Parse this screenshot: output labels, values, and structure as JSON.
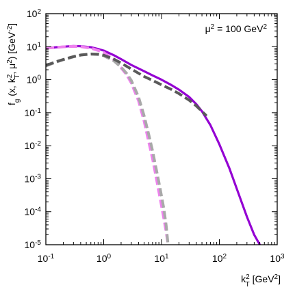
{
  "chart_data": {
    "type": "line",
    "annotation": {
      "label": "μ² = 100 GeV²",
      "base": "μ",
      "sup1": "2",
      "mid": " = 100 GeV",
      "sup2": "2"
    },
    "xlabel": {
      "base": "k",
      "sub": "T",
      "sup": "2",
      "tail": " [GeV",
      "tail_sup": "2",
      "end": "]"
    },
    "ylabel": {
      "p1": "f",
      "p1_sub": "g",
      "p2": " (x, k",
      "p2_sub": "T",
      "p2_sup": "2",
      "p3": ", μ",
      "p3_sup": "2",
      "p4": ") [GeV",
      "p4_sup": "-2",
      "p5": "]"
    },
    "x_scale": "log",
    "y_scale": "log",
    "xlim": [
      0.1,
      1000
    ],
    "ylim": [
      1e-05,
      100
    ],
    "x_ticks": [
      {
        "value": 0.1,
        "base": "10",
        "exp": "-1"
      },
      {
        "value": 1,
        "base": "10",
        "exp": "0"
      },
      {
        "value": 10,
        "base": "10",
        "exp": "1"
      },
      {
        "value": 100,
        "base": "10",
        "exp": "2"
      },
      {
        "value": 1000,
        "base": "10",
        "exp": "3"
      }
    ],
    "y_ticks": [
      {
        "value": 1e-05,
        "base": "10",
        "exp": "-5"
      },
      {
        "value": 0.0001,
        "base": "10",
        "exp": "-4"
      },
      {
        "value": 0.001,
        "base": "10",
        "exp": "-3"
      },
      {
        "value": 0.01,
        "base": "10",
        "exp": "-2"
      },
      {
        "value": 0.1,
        "base": "10",
        "exp": "-1"
      },
      {
        "value": 1,
        "base": "10",
        "exp": "0"
      },
      {
        "value": 10,
        "base": "10",
        "exp": "1"
      },
      {
        "value": 100,
        "base": "10",
        "exp": "2"
      }
    ],
    "grid": false,
    "series": [
      {
        "color": "#9400d3",
        "style": "solid",
        "x": [
          0.1,
          0.15,
          0.2,
          0.3,
          0.4,
          0.6,
          0.8,
          1,
          1.5,
          2,
          3,
          5,
          7,
          10,
          15,
          20,
          30,
          40,
          50,
          70,
          100,
          150,
          200,
          300,
          400,
          500
        ],
        "y": [
          9.0,
          9.6,
          10.0,
          10.5,
          10.3,
          9.6,
          8.5,
          7.6,
          5.5,
          4.2,
          2.8,
          1.8,
          1.35,
          1.0,
          0.68,
          0.5,
          0.3,
          0.18,
          0.11,
          0.042,
          0.011,
          0.002,
          0.0005,
          7e-05,
          2e-05,
          1e-05
        ]
      },
      {
        "color": "#ee82ee",
        "style": "dashed",
        "x": [
          0.1,
          0.15,
          0.2,
          0.3,
          0.4,
          0.6,
          0.8,
          1,
          1.5,
          2,
          2.5,
          3,
          4,
          5,
          6,
          7,
          8,
          9,
          10,
          11,
          12,
          13
        ],
        "y": [
          9.0,
          9.5,
          9.9,
          10.2,
          10.0,
          9.0,
          7.7,
          6.7,
          4.0,
          2.3,
          1.4,
          0.8,
          0.23,
          0.055,
          0.013,
          0.004,
          0.0012,
          0.0004,
          0.00015,
          6e-05,
          2.5e-05,
          1e-05
        ]
      },
      {
        "color": "#a9a9a9",
        "style": "dashed",
        "x": [
          0.1,
          0.15,
          0.2,
          0.3,
          0.4,
          0.5,
          0.6,
          0.8,
          1,
          1.5,
          2,
          2.5,
          3,
          4,
          5,
          6,
          7,
          8,
          9,
          10,
          11,
          12,
          13
        ],
        "y": [
          2.6,
          3.4,
          4.0,
          4.9,
          5.5,
          5.8,
          5.9,
          5.8,
          5.3,
          3.7,
          2.4,
          1.55,
          0.95,
          0.3,
          0.08,
          0.022,
          0.007,
          0.0022,
          0.0008,
          0.0003,
          0.00012,
          4e-05,
          1e-05
        ]
      },
      {
        "color": "#5a5a5a",
        "style": "dashed",
        "x": [
          0.1,
          0.15,
          0.2,
          0.3,
          0.4,
          0.6,
          0.8,
          1,
          1.5,
          2,
          3,
          5,
          7,
          10,
          15,
          20,
          30,
          40,
          50,
          60
        ],
        "y": [
          2.7,
          3.5,
          4.1,
          5.0,
          5.6,
          6.0,
          5.9,
          5.5,
          4.2,
          3.2,
          2.1,
          1.25,
          0.95,
          0.7,
          0.5,
          0.38,
          0.24,
          0.16,
          0.11,
          0.08
        ]
      }
    ]
  }
}
